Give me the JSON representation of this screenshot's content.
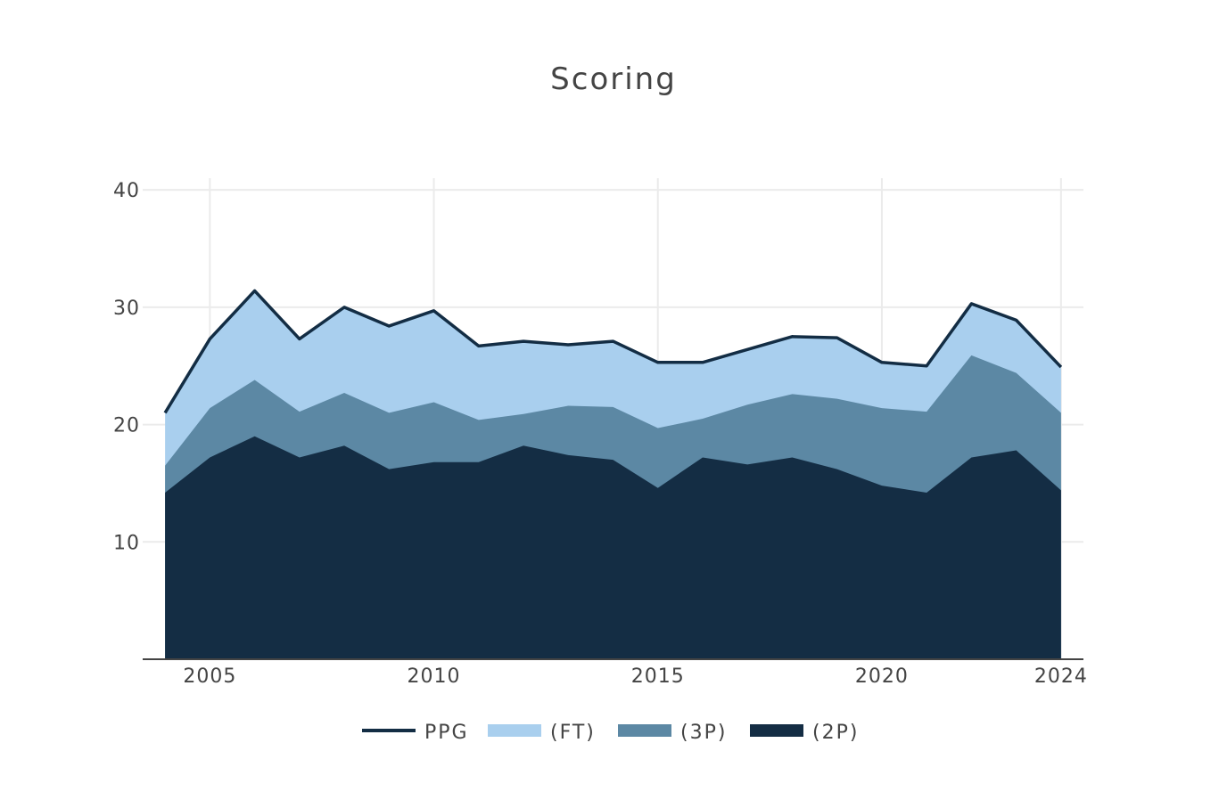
{
  "chart_data": {
    "type": "area",
    "title": "Scoring",
    "xlabel": "",
    "ylabel": "",
    "xlim": [
      2003.5,
      2024.5
    ],
    "ylim": [
      0,
      41
    ],
    "x_ticks": [
      "2005",
      "2010",
      "2015",
      "2020",
      "2024"
    ],
    "y_ticks": [
      "10",
      "20",
      "30",
      "40"
    ],
    "grid": true,
    "legend_position": "bottom",
    "x": [
      2004,
      2005,
      2006,
      2007,
      2008,
      2009,
      2010,
      2011,
      2012,
      2013,
      2014,
      2015,
      2016,
      2017,
      2018,
      2019,
      2020,
      2021,
      2022,
      2023,
      2024
    ],
    "series": [
      {
        "name": "PPG",
        "kind": "line",
        "color": "#132d44",
        "values": [
          21.0,
          27.3,
          31.4,
          27.3,
          30.0,
          28.4,
          29.7,
          26.7,
          27.1,
          26.8,
          27.1,
          25.3,
          25.3,
          26.4,
          27.5,
          27.4,
          25.3,
          25.0,
          30.3,
          28.9,
          24.9
        ]
      },
      {
        "name": "(FT)",
        "kind": "area",
        "color": "#a9cfee",
        "values": [
          21.0,
          27.3,
          31.4,
          27.3,
          30.0,
          28.4,
          29.7,
          26.7,
          27.1,
          26.8,
          27.1,
          25.3,
          25.3,
          26.4,
          27.5,
          27.4,
          25.3,
          25.0,
          30.3,
          28.9,
          24.9
        ]
      },
      {
        "name": "(3P)",
        "kind": "area",
        "color": "#5c88a4",
        "values": [
          16.5,
          21.4,
          23.8,
          21.1,
          22.7,
          21.0,
          21.9,
          20.4,
          20.9,
          21.6,
          21.5,
          19.7,
          20.5,
          21.7,
          22.6,
          22.2,
          21.4,
          21.1,
          25.9,
          24.4,
          21.0
        ]
      },
      {
        "name": "(2P)",
        "kind": "area",
        "color": "#142d44",
        "values": [
          14.2,
          17.2,
          19.0,
          17.2,
          18.2,
          16.2,
          16.8,
          16.8,
          18.2,
          17.4,
          17.0,
          14.6,
          17.2,
          16.6,
          17.2,
          16.2,
          14.8,
          14.2,
          17.2,
          17.8,
          14.4
        ]
      }
    ]
  }
}
